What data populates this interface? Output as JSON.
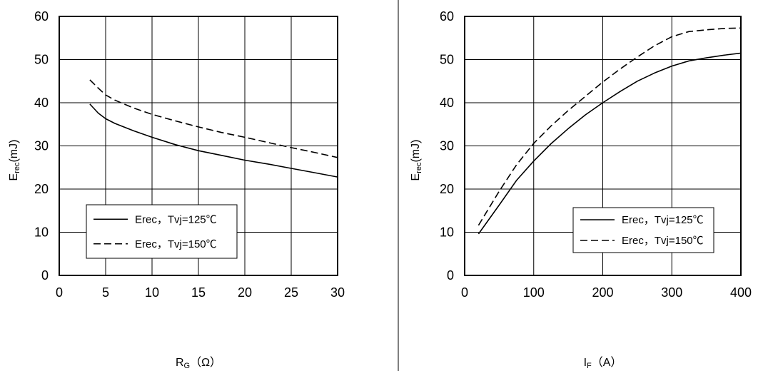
{
  "chart_data": [
    {
      "type": "line",
      "title": "",
      "xlabel": "R",
      "xlabel_sub": "G",
      "xlabel_unit": "（Ω）",
      "ylabel": "E",
      "ylabel_sub": "rec",
      "ylabel_unit": "(mJ)",
      "xlim": [
        0,
        30
      ],
      "ylim": [
        0,
        60
      ],
      "xticks": [
        "0",
        "5",
        "10",
        "15",
        "20",
        "25",
        "30"
      ],
      "yticks": [
        "0",
        "10",
        "20",
        "30",
        "40",
        "50",
        "60"
      ],
      "grid": true,
      "legend_position": "lower-left",
      "series": [
        {
          "name": "Erec，Tvj=125℃",
          "style": "solid",
          "x": [
            3.3,
            4.2,
            5.0,
            6.0,
            8.0,
            10.0,
            12.5,
            15.0,
            17.5,
            20.0,
            22.5,
            25.0,
            27.5,
            30.0
          ],
          "y": [
            39.7,
            37.6,
            36.3,
            35.2,
            33.5,
            32.0,
            30.3,
            28.9,
            27.8,
            26.7,
            25.8,
            24.8,
            23.8,
            22.8
          ]
        },
        {
          "name": "Erec，Tvj=150℃",
          "style": "dashed",
          "x": [
            3.3,
            4.2,
            5.0,
            6.0,
            8.0,
            10.0,
            12.5,
            15.0,
            17.5,
            20.0,
            22.5,
            25.0,
            27.5,
            30.0
          ],
          "y": [
            45.3,
            43.4,
            41.8,
            40.6,
            38.8,
            37.3,
            35.8,
            34.4,
            33.1,
            32.0,
            30.8,
            29.6,
            28.5,
            27.3
          ]
        }
      ]
    },
    {
      "type": "line",
      "title": "",
      "xlabel": "I",
      "xlabel_sub": "F",
      "xlabel_unit": "（A）",
      "ylabel": "E",
      "ylabel_sub": "rec",
      "ylabel_unit": "(mJ)",
      "xlim": [
        0,
        400
      ],
      "ylim": [
        0,
        60
      ],
      "xticks": [
        "0",
        "100",
        "200",
        "300",
        "400"
      ],
      "yticks": [
        "0",
        "10",
        "20",
        "30",
        "40",
        "50",
        "60"
      ],
      "grid": true,
      "legend_position": "lower-right",
      "series": [
        {
          "name": "Erec，Tvj=125℃",
          "style": "solid",
          "x": [
            20,
            50,
            75,
            100,
            125,
            150,
            175,
            200,
            225,
            250,
            275,
            300,
            325,
            350,
            375,
            400
          ],
          "y": [
            9.6,
            16.3,
            22.0,
            26.5,
            30.5,
            34.0,
            37.2,
            40.0,
            42.6,
            45.0,
            46.9,
            48.5,
            49.7,
            50.4,
            51.0,
            51.5
          ]
        },
        {
          "name": "Erec，Tvj=150℃",
          "style": "dashed",
          "x": [
            20,
            50,
            75,
            100,
            125,
            150,
            175,
            200,
            225,
            250,
            275,
            300,
            325,
            350,
            375,
            400
          ],
          "y": [
            11.6,
            19.5,
            25.6,
            30.6,
            34.6,
            38.2,
            41.5,
            44.8,
            47.8,
            50.6,
            53.2,
            55.3,
            56.5,
            56.9,
            57.2,
            57.3
          ]
        }
      ]
    }
  ]
}
